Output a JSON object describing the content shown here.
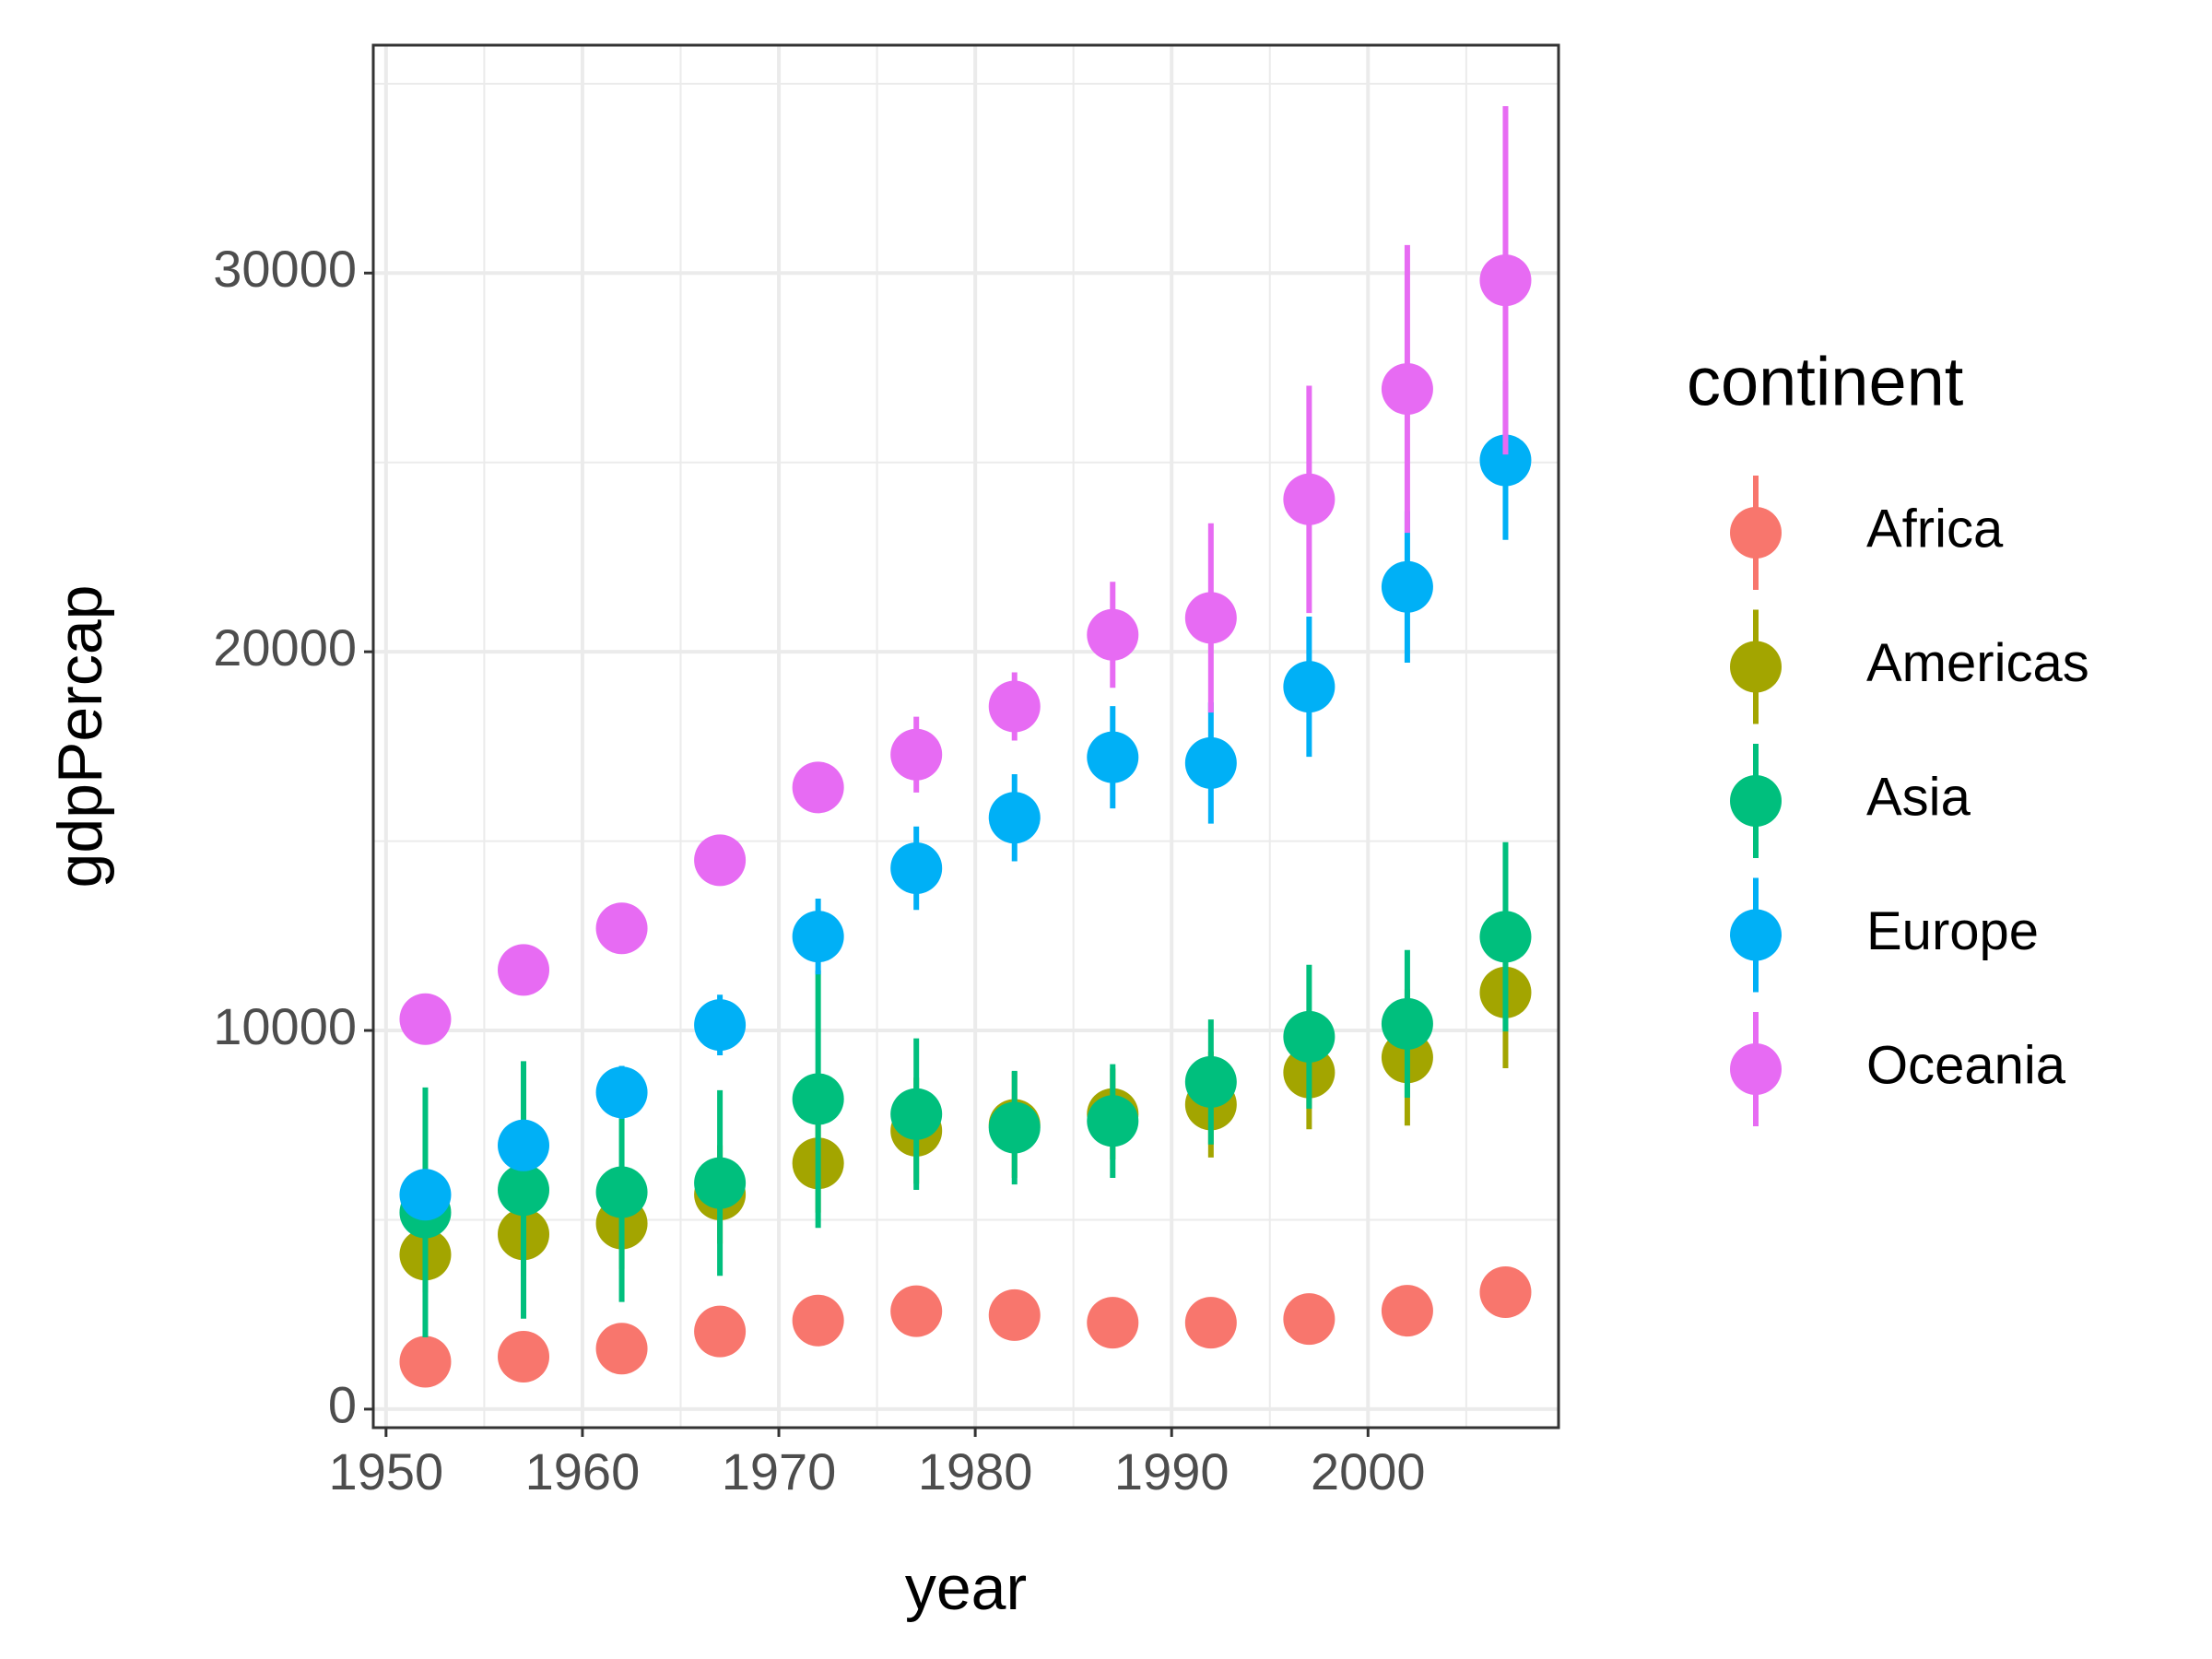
{
  "chart_data": {
    "type": "pointrange",
    "x_label": "year",
    "y_label": "gdpPercap",
    "legend_title": "continent",
    "legend_position": "right",
    "x": [
      1952,
      1957,
      1962,
      1967,
      1972,
      1977,
      1982,
      1987,
      1992,
      1997,
      2002,
      2007
    ],
    "series": [
      {
        "name": "Africa",
        "color": "#F8766D",
        "values": [
          1252,
          1385,
          1598,
          2050,
          2340,
          2586,
          2482,
          2283,
          2282,
          2379,
          2599,
          3089
        ],
        "errors": [
          300,
          300,
          300,
          300,
          300,
          300,
          300,
          300,
          300,
          300,
          300,
          300
        ]
      },
      {
        "name": "Americas",
        "color": "#A3A500",
        "values": [
          4079,
          4616,
          4902,
          5668,
          6491,
          7352,
          7507,
          7793,
          8045,
          8890,
          9288,
          11003
        ],
        "errors": [
          1000,
          1100,
          1200,
          1300,
          1300,
          1400,
          1400,
          1200,
          1400,
          1500,
          1800,
          2000
        ]
      },
      {
        "name": "Asia",
        "color": "#00BF7D",
        "values": [
          5195,
          5788,
          5729,
          5971,
          8187,
          7791,
          7434,
          7608,
          8640,
          9834,
          10174,
          12473
        ],
        "errors": [
          3300,
          3400,
          2900,
          2450,
          3400,
          2000,
          1500,
          1500,
          1650,
          1900,
          1950,
          2500
        ]
      },
      {
        "name": "Europe",
        "color": "#00B0F6",
        "values": [
          5661,
          6963,
          8365,
          10144,
          12480,
          14284,
          15618,
          17214,
          17062,
          19077,
          21712,
          25054
        ],
        "errors": [
          500,
          600,
          700,
          800,
          1000,
          1100,
          1150,
          1350,
          1600,
          1850,
          2000,
          2100
        ]
      },
      {
        "name": "Oceania",
        "color": "#E76BF3",
        "values": [
          10298,
          11599,
          12696,
          14495,
          16417,
          17284,
          18555,
          20448,
          20894,
          24024,
          26939,
          29810
        ],
        "errors": [
          300,
          300,
          300,
          300,
          400,
          1000,
          900,
          1400,
          2500,
          3000,
          3800,
          4600
        ]
      }
    ],
    "xlim": [
      1949.35,
      2009.7
    ],
    "xticks": [
      1950,
      1960,
      1970,
      1980,
      1990,
      2000
    ],
    "ylim": [
      -489,
      36018
    ],
    "yticks": [
      0,
      10000,
      20000,
      30000
    ],
    "grid": true
  }
}
